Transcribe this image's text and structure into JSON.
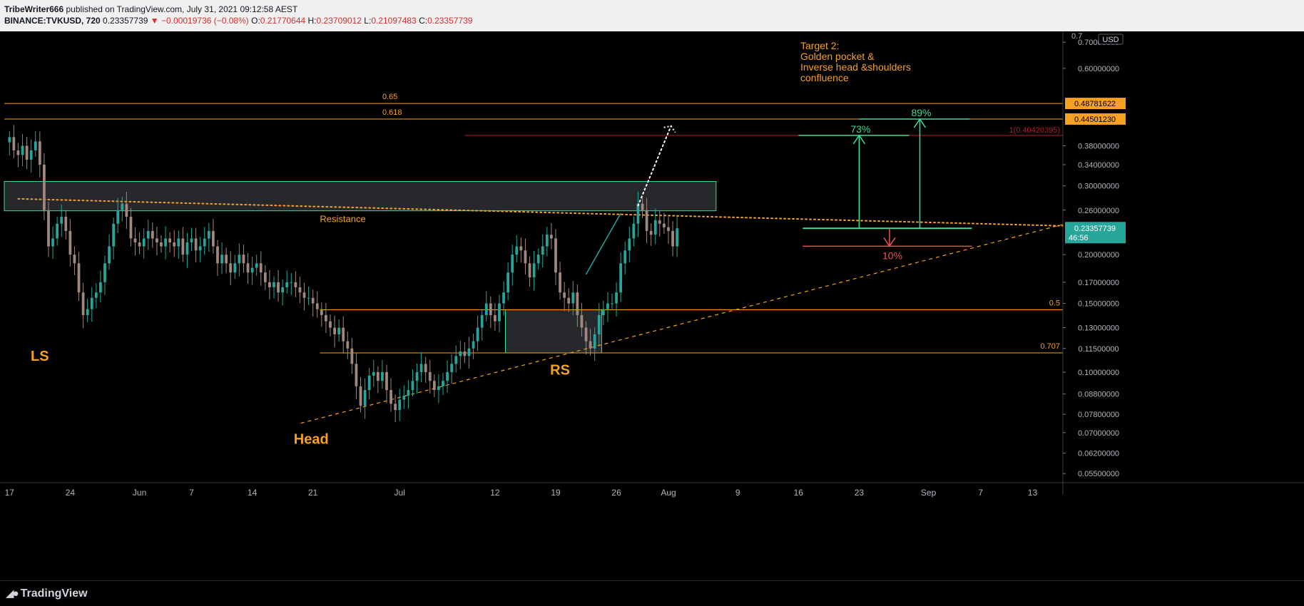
{
  "header": {
    "author": "TribeWriter666",
    "published": "published on TradingView.com, July 31, 2021 09:12:58 AEST",
    "symbol": "BINANCE:TVKUSD, 720",
    "last": "0.23357739",
    "change": "▼ −0.00019736 (−0.08%)",
    "o_label": "O:",
    "o": "0.21770644",
    "h_label": "H:",
    "h": "0.23709012",
    "l_label": "L:",
    "l": "0.21097483",
    "c_label": "C:",
    "c": "0.23357739"
  },
  "footer": {
    "brand": "TradingView"
  },
  "colors": {
    "up": "#26a69a",
    "down": "#a1887f",
    "orange": "#f7a021",
    "green": "#3ddc97",
    "red": "#ef5350",
    "fib_red": "#b71c2e",
    "price_tag": "#26a69a"
  },
  "chart_data": {
    "type": "candlestick",
    "price_scale": {
      "type": "log",
      "range": [
        0.053,
        0.74
      ],
      "currency": "USD"
    },
    "price_ticks": [
      "0.70000000",
      "0.60000000",
      "0.48781622",
      "0.44501230",
      "0.38000000",
      "0.34000000",
      "0.30000000",
      "0.26000000",
      "0.20000000",
      "0.17000000",
      "0.15000000",
      "0.13000000",
      "0.11500000",
      "0.10000000",
      "0.08800000",
      "0.07800000",
      "0.07000000",
      "0.06200000",
      "0.05500000"
    ],
    "price_tick_values": [
      0.7,
      0.6,
      0.48781622,
      0.4450123,
      0.38,
      0.34,
      0.3,
      0.26,
      0.2,
      0.17,
      0.15,
      0.13,
      0.115,
      0.1,
      0.088,
      0.078,
      0.07,
      0.062,
      0.055
    ],
    "top_tick": "0.7",
    "currency_badge": "USD",
    "time_ticks": [
      {
        "label": "17",
        "day": 0
      },
      {
        "label": "24",
        "day": 7
      },
      {
        "label": "Jun",
        "day": 15
      },
      {
        "label": "7",
        "day": 21
      },
      {
        "label": "14",
        "day": 28
      },
      {
        "label": "21",
        "day": 35
      },
      {
        "label": "Jul",
        "day": 45
      },
      {
        "label": "12",
        "day": 56
      },
      {
        "label": "19",
        "day": 63
      },
      {
        "label": "26",
        "day": 70
      },
      {
        "label": "Aug",
        "day": 76
      },
      {
        "label": "9",
        "day": 84
      },
      {
        "label": "16",
        "day": 91
      },
      {
        "label": "23",
        "day": 98
      },
      {
        "label": "Sep",
        "day": 106
      },
      {
        "label": "7",
        "day": 112
      },
      {
        "label": "13",
        "day": 118
      }
    ],
    "x_range_days": [
      -0.6,
      121.5
    ],
    "candles_per_day": 2,
    "candle_closes": [
      0.4,
      0.37,
      0.36,
      0.38,
      0.35,
      0.37,
      0.39,
      0.34,
      0.26,
      0.21,
      0.22,
      0.24,
      0.25,
      0.23,
      0.2,
      0.19,
      0.16,
      0.14,
      0.145,
      0.155,
      0.16,
      0.17,
      0.19,
      0.21,
      0.24,
      0.26,
      0.27,
      0.25,
      0.22,
      0.215,
      0.21,
      0.22,
      0.23,
      0.22,
      0.215,
      0.21,
      0.22,
      0.215,
      0.21,
      0.22,
      0.2,
      0.215,
      0.22,
      0.205,
      0.21,
      0.22,
      0.23,
      0.21,
      0.19,
      0.2,
      0.19,
      0.18,
      0.19,
      0.2,
      0.19,
      0.18,
      0.185,
      0.19,
      0.18,
      0.17,
      0.165,
      0.17,
      0.16,
      0.165,
      0.17,
      0.17,
      0.165,
      0.16,
      0.155,
      0.155,
      0.15,
      0.145,
      0.14,
      0.135,
      0.13,
      0.125,
      0.13,
      0.12,
      0.115,
      0.105,
      0.092,
      0.082,
      0.09,
      0.098,
      0.1,
      0.095,
      0.1,
      0.09,
      0.083,
      0.08,
      0.085,
      0.087,
      0.09,
      0.095,
      0.1,
      0.105,
      0.1,
      0.095,
      0.09,
      0.092,
      0.095,
      0.1,
      0.105,
      0.11,
      0.113,
      0.11,
      0.115,
      0.12,
      0.13,
      0.14,
      0.15,
      0.14,
      0.135,
      0.15,
      0.16,
      0.18,
      0.2,
      0.21,
      0.205,
      0.19,
      0.175,
      0.19,
      0.2,
      0.21,
      0.225,
      0.22,
      0.18,
      0.16,
      0.155,
      0.15,
      0.16,
      0.14,
      0.13,
      0.12,
      0.115,
      0.125,
      0.14,
      0.145,
      0.15,
      0.15,
      0.16,
      0.19,
      0.205,
      0.22,
      0.24,
      0.27,
      0.26,
      0.23,
      0.225,
      0.245,
      0.24,
      0.235,
      0.23,
      0.21,
      0.2336
    ],
    "levels": [
      {
        "label": "0.65",
        "price": 0.48781622,
        "tag": "0.48781622",
        "color": "orange",
        "x0": -0.6
      },
      {
        "label": "0.618",
        "price": 0.4450123,
        "tag": "0.44501230",
        "color": "orange",
        "x0": -0.6
      },
      {
        "label": "0.5",
        "price": 0.1445,
        "color": "orange",
        "x0": 35.8
      },
      {
        "label": "0.707",
        "price": 0.112,
        "color": "orange",
        "x0": 35.8
      }
    ],
    "fib_target": {
      "label": "1(0.40420395)",
      "price": 0.40420395,
      "x0": 52.5
    },
    "resistance_zone": {
      "label": "Resistance",
      "top": 0.308,
      "bottom": 0.259,
      "x0": -0.6,
      "x1": 81.5
    },
    "rs_zone": {
      "top": 0.1445,
      "bottom": 0.112,
      "x0": 57.2,
      "x1": 68.3
    },
    "downtrend_line": {
      "points": [
        [
          1,
          0.278
        ],
        [
          121.5,
          0.237
        ]
      ]
    },
    "uptrend_line": {
      "points": [
        [
          33.6,
          0.074
        ],
        [
          121.5,
          0.239
        ]
      ]
    },
    "projection_arrow": {
      "points": [
        [
          72.5,
          0.267
        ],
        [
          76.3,
          0.427
        ]
      ]
    },
    "annotations": [
      {
        "text": "LS",
        "day": 3.5,
        "price": 0.107
      },
      {
        "text": "Head",
        "day": 34.8,
        "price": 0.0655
      },
      {
        "text": "RS",
        "day": 63.5,
        "price": 0.0985
      }
    ],
    "target_note": [
      "Target 2:",
      "Golden pocket &",
      "Inverse head &shoulders",
      "confluence"
    ],
    "measurements": [
      {
        "label": "73%",
        "from": 0.2336,
        "to": 0.40420395,
        "day": 98
      },
      {
        "label": "89%",
        "from": 0.2336,
        "to": 0.4450123,
        "day": 105
      },
      {
        "label": "10%",
        "from": 0.2336,
        "to": 0.2102,
        "day": 101.5
      }
    ],
    "entry_level": {
      "price": 0.2336,
      "x0": 91.5,
      "x1": 111
    },
    "stop_level": {
      "price": 0.2102,
      "x0": 91.5,
      "x1": 111
    },
    "last_price": {
      "value": "0.23357739",
      "countdown": "46:56",
      "price": 0.23357739
    }
  }
}
